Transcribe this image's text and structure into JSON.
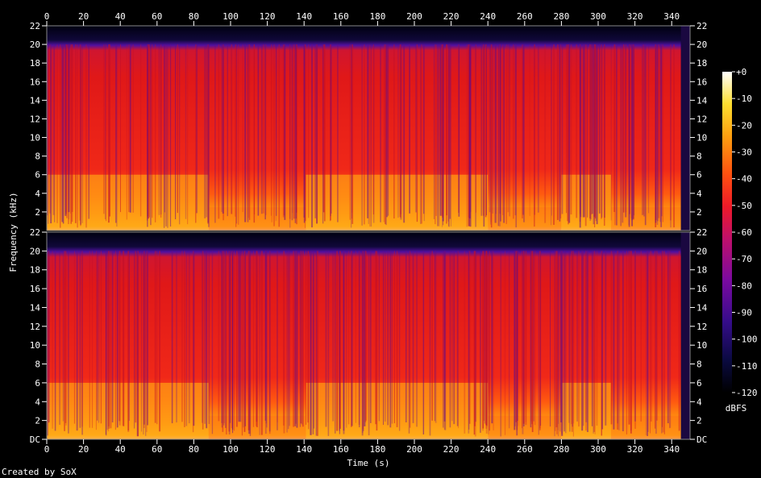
{
  "chart_data": {
    "type": "heatmap",
    "title": "",
    "xlabel": "Time (s)",
    "ylabel": "Frequency (kHz)",
    "xlim": [
      0,
      350
    ],
    "ylim": [
      0,
      22
    ],
    "x_ticks": [
      0,
      20,
      40,
      60,
      80,
      100,
      120,
      140,
      160,
      180,
      200,
      220,
      240,
      260,
      280,
      300,
      320,
      340
    ],
    "y_ticks_upper": [
      "22",
      "20",
      "18",
      "16",
      "14",
      "12",
      "10",
      "8",
      "6",
      "4",
      "2"
    ],
    "y_ticks_lower": [
      "22",
      "20",
      "18",
      "16",
      "14",
      "12",
      "10",
      "8",
      "6",
      "4",
      "2",
      "DC"
    ],
    "channels": 2,
    "colorbar": {
      "label": "dBFS",
      "ticks": [
        "+0",
        "-10",
        "-20",
        "-30",
        "-40",
        "-50",
        "-60",
        "-70",
        "-80",
        "-90",
        "-100",
        "-110",
        "-120"
      ],
      "range": [
        -120,
        0
      ]
    },
    "bright_segments_s": [
      {
        "start": 0,
        "end": 88,
        "level": "high"
      },
      {
        "start": 88,
        "end": 141,
        "level": "medium"
      },
      {
        "start": 141,
        "end": 240,
        "level": "high"
      },
      {
        "start": 240,
        "end": 280,
        "level": "medium"
      },
      {
        "start": 280,
        "end": 307,
        "level": "high"
      },
      {
        "start": 307,
        "end": 345,
        "level": "medium"
      }
    ],
    "audio_end_s": 350
  },
  "credit": "Created by SoX"
}
